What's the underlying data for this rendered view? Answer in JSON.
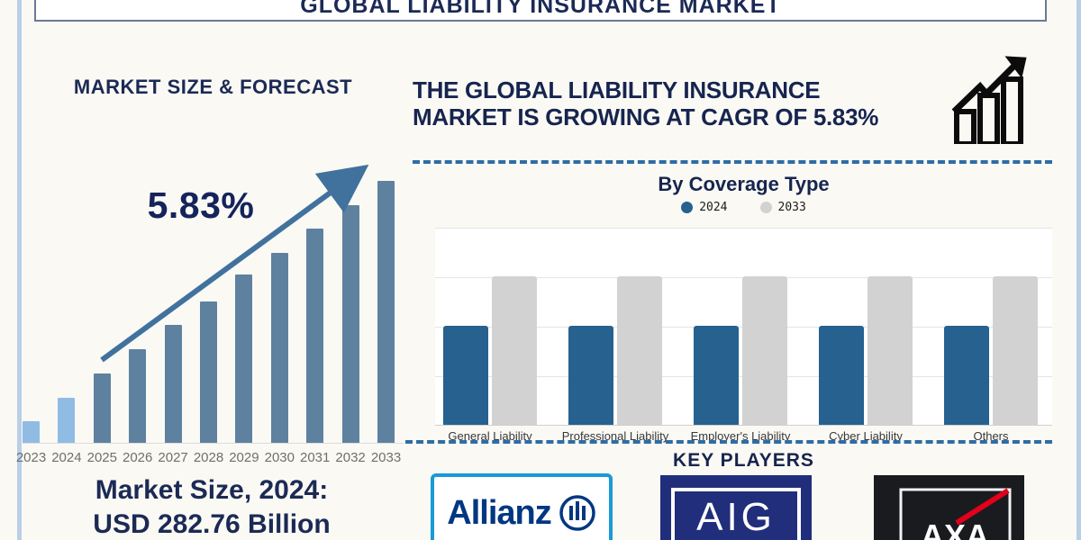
{
  "header": {
    "title": "GLOBAL LIABILITY INSURANCE MARKET"
  },
  "left_panel": {
    "heading": "MARKET SIZE & FORECAST",
    "market_size_label": "Market Size, 2024:",
    "market_size_value": "USD 282.76 Billion"
  },
  "right_panel": {
    "headline_line1": "THE GLOBAL LIABILITY INSURANCE",
    "headline_line2": "MARKET IS GROWING AT CAGR OF 5.83%",
    "key_players": {
      "title": "KEY PLAYERS",
      "players": [
        "Allianz",
        "AIG",
        "AXA"
      ]
    }
  },
  "chart_data": [
    {
      "type": "bar",
      "title": "MARKET SIZE & FORECAST",
      "annotation": "5.83%",
      "categories": [
        "2023",
        "2024",
        "2025",
        "2026",
        "2027",
        "2028",
        "2029",
        "2030",
        "2031",
        "2032",
        "2033"
      ],
      "values_relative_pct": [
        8,
        17,
        26,
        35,
        44,
        53,
        63,
        71,
        80,
        89,
        98
      ],
      "known_point": {
        "year": "2024",
        "value": "USD 282.76 Billion"
      },
      "historical_bar_count": 2,
      "colors": {
        "historical": "#90bce4",
        "forecast": "#5e81a0",
        "trend_arrow": "#41729e"
      },
      "xlabel": "",
      "ylabel": "",
      "grid": false,
      "legend": false
    },
    {
      "type": "bar",
      "title": "By Coverage Type",
      "categories": [
        "General Liability",
        "Professional Liability",
        "Employer's Liability",
        "Cyber Liability",
        "Others"
      ],
      "series": [
        {
          "name": "2024",
          "color": "#26618f",
          "values": [
            50,
            50,
            50,
            50,
            50
          ]
        },
        {
          "name": "2033",
          "color": "#d2d2d2",
          "values": [
            75,
            75,
            75,
            75,
            75
          ]
        }
      ],
      "ylim": [
        0,
        100
      ],
      "grid": true,
      "legend_position": "top"
    }
  ]
}
